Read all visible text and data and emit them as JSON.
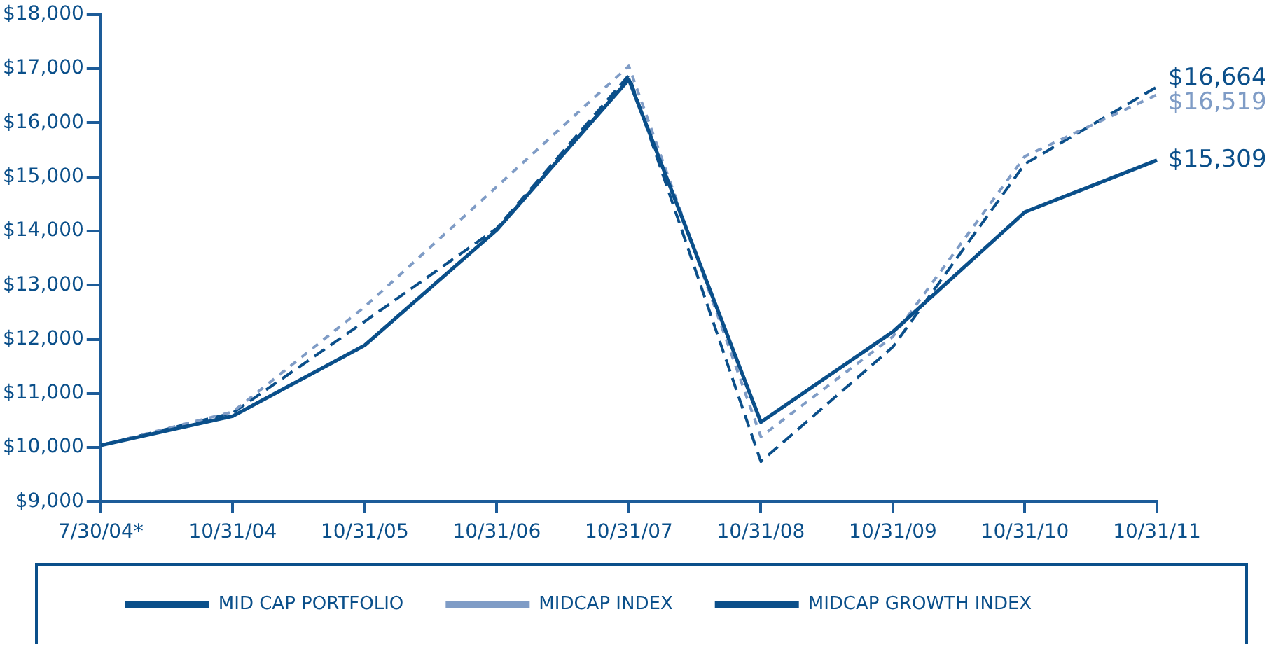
{
  "chart_data": {
    "type": "line",
    "categories": [
      "7/30/04*",
      "10/31/04",
      "10/31/05",
      "10/31/06",
      "10/31/07",
      "10/31/08",
      "10/31/09",
      "10/31/10",
      "10/31/11"
    ],
    "ylim": [
      9000,
      18000
    ],
    "yticks": [
      {
        "value": 9000,
        "label": "$9,000"
      },
      {
        "value": 10000,
        "label": "$10,000"
      },
      {
        "value": 11000,
        "label": "$11,000"
      },
      {
        "value": 12000,
        "label": "$12,000"
      },
      {
        "value": 13000,
        "label": "$13,000"
      },
      {
        "value": 14000,
        "label": "$14,000"
      },
      {
        "value": 15000,
        "label": "$15,000"
      },
      {
        "value": 16000,
        "label": "$16,000"
      },
      {
        "value": 17000,
        "label": "$17,000"
      },
      {
        "value": 18000,
        "label": "$18,000"
      }
    ],
    "grid": false,
    "legend": "bottom",
    "marker": "none",
    "series": [
      {
        "name": "MID CAP PORTFOLIO",
        "color": "#0a4f8a",
        "line_style": "solid",
        "values": [
          10040,
          10580,
          11890,
          14020,
          16800,
          10470,
          12140,
          14350,
          15309
        ],
        "value_labels": [
          null,
          null,
          null,
          null,
          null,
          null,
          null,
          null,
          "$15,309"
        ]
      },
      {
        "name": "MIDCAP INDEX",
        "color": "#7f9cc6",
        "line_style": "dotted",
        "values": [
          10040,
          10660,
          12600,
          14820,
          17050,
          10200,
          12050,
          15380,
          16519
        ],
        "value_labels": [
          null,
          null,
          null,
          null,
          null,
          null,
          null,
          null,
          "$16,519"
        ]
      },
      {
        "name": "MIDCAP GROWTH INDEX",
        "color": "#0b4f8a",
        "line_style": "dashed",
        "values": [
          10040,
          10640,
          12330,
          14050,
          16880,
          9740,
          11860,
          15240,
          16664
        ],
        "value_labels": [
          null,
          null,
          null,
          null,
          null,
          null,
          null,
          null,
          "$16,664"
        ]
      }
    ]
  }
}
